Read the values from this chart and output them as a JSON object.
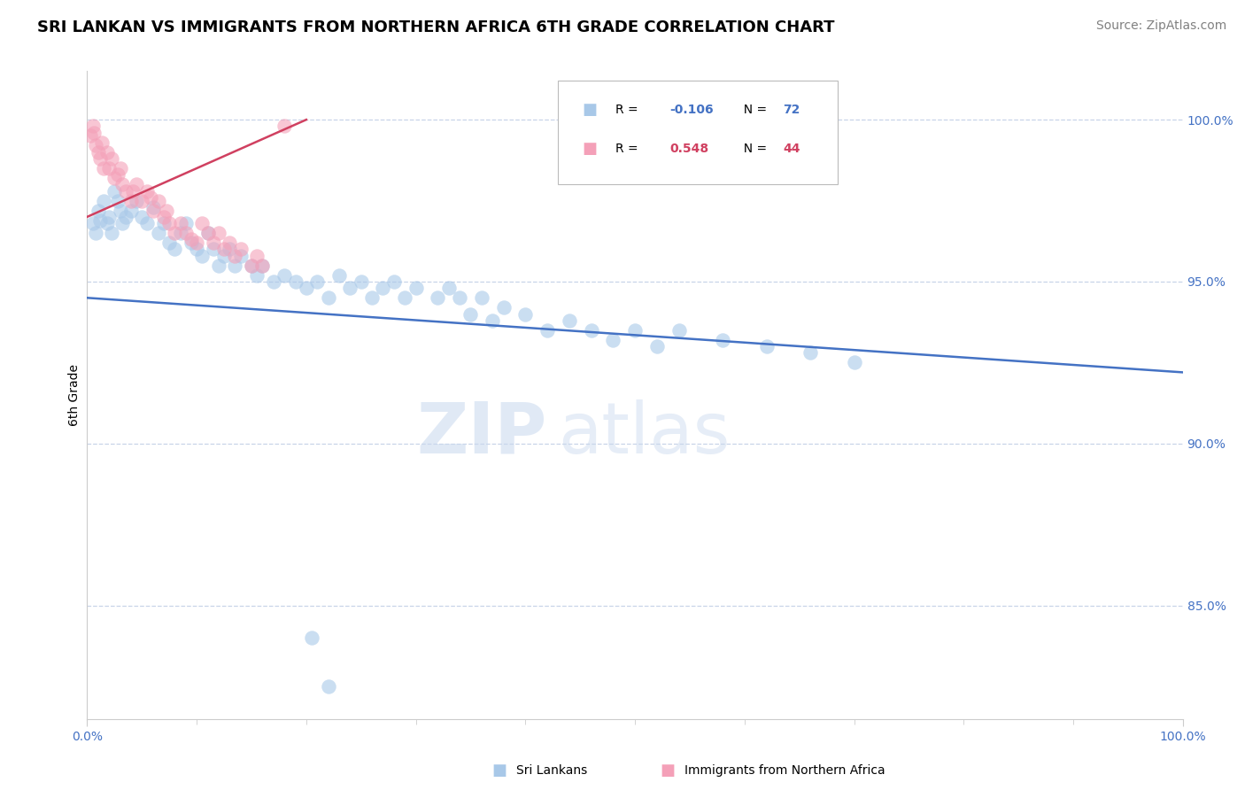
{
  "title": "SRI LANKAN VS IMMIGRANTS FROM NORTHERN AFRICA 6TH GRADE CORRELATION CHART",
  "source": "Source: ZipAtlas.com",
  "ylabel": "6th Grade",
  "legend_blue_r_val": "-0.106",
  "legend_blue_n_val": "72",
  "legend_pink_r_val": "0.548",
  "legend_pink_n_val": "44",
  "legend_label_blue": "Sri Lankans",
  "legend_label_pink": "Immigrants from Northern Africa",
  "blue_color": "#A8C8E8",
  "pink_color": "#F4A0B8",
  "trend_blue_color": "#4472C4",
  "trend_pink_color": "#D04060",
  "watermark_zip": "ZIP",
  "watermark_atlas": "atlas",
  "blue_points": [
    [
      0.5,
      96.8
    ],
    [
      0.8,
      96.5
    ],
    [
      1.0,
      97.2
    ],
    [
      1.2,
      96.9
    ],
    [
      1.5,
      97.5
    ],
    [
      1.8,
      96.8
    ],
    [
      2.0,
      97.0
    ],
    [
      2.2,
      96.5
    ],
    [
      2.5,
      97.8
    ],
    [
      2.8,
      97.5
    ],
    [
      3.0,
      97.2
    ],
    [
      3.2,
      96.8
    ],
    [
      3.5,
      97.0
    ],
    [
      4.0,
      97.2
    ],
    [
      4.5,
      97.5
    ],
    [
      5.0,
      97.0
    ],
    [
      5.5,
      96.8
    ],
    [
      6.0,
      97.3
    ],
    [
      6.5,
      96.5
    ],
    [
      7.0,
      96.8
    ],
    [
      7.5,
      96.2
    ],
    [
      8.0,
      96.0
    ],
    [
      8.5,
      96.5
    ],
    [
      9.0,
      96.8
    ],
    [
      9.5,
      96.2
    ],
    [
      10.0,
      96.0
    ],
    [
      10.5,
      95.8
    ],
    [
      11.0,
      96.5
    ],
    [
      11.5,
      96.0
    ],
    [
      12.0,
      95.5
    ],
    [
      12.5,
      95.8
    ],
    [
      13.0,
      96.0
    ],
    [
      13.5,
      95.5
    ],
    [
      14.0,
      95.8
    ],
    [
      15.0,
      95.5
    ],
    [
      15.5,
      95.2
    ],
    [
      16.0,
      95.5
    ],
    [
      17.0,
      95.0
    ],
    [
      18.0,
      95.2
    ],
    [
      19.0,
      95.0
    ],
    [
      20.0,
      94.8
    ],
    [
      21.0,
      95.0
    ],
    [
      22.0,
      94.5
    ],
    [
      23.0,
      95.2
    ],
    [
      24.0,
      94.8
    ],
    [
      25.0,
      95.0
    ],
    [
      26.0,
      94.5
    ],
    [
      27.0,
      94.8
    ],
    [
      28.0,
      95.0
    ],
    [
      29.0,
      94.5
    ],
    [
      30.0,
      94.8
    ],
    [
      32.0,
      94.5
    ],
    [
      33.0,
      94.8
    ],
    [
      34.0,
      94.5
    ],
    [
      35.0,
      94.0
    ],
    [
      36.0,
      94.5
    ],
    [
      37.0,
      93.8
    ],
    [
      38.0,
      94.2
    ],
    [
      40.0,
      94.0
    ],
    [
      42.0,
      93.5
    ],
    [
      44.0,
      93.8
    ],
    [
      46.0,
      93.5
    ],
    [
      48.0,
      93.2
    ],
    [
      50.0,
      93.5
    ],
    [
      52.0,
      93.0
    ],
    [
      54.0,
      93.5
    ],
    [
      58.0,
      93.2
    ],
    [
      62.0,
      93.0
    ],
    [
      66.0,
      92.8
    ],
    [
      70.0,
      92.5
    ],
    [
      20.5,
      84.0
    ],
    [
      22.0,
      82.5
    ]
  ],
  "pink_points": [
    [
      0.3,
      99.5
    ],
    [
      0.5,
      99.8
    ],
    [
      0.8,
      99.2
    ],
    [
      1.0,
      99.0
    ],
    [
      1.2,
      98.8
    ],
    [
      1.5,
      98.5
    ],
    [
      1.8,
      99.0
    ],
    [
      2.0,
      98.5
    ],
    [
      2.2,
      98.8
    ],
    [
      2.5,
      98.2
    ],
    [
      3.0,
      98.5
    ],
    [
      3.2,
      98.0
    ],
    [
      3.5,
      97.8
    ],
    [
      4.0,
      97.5
    ],
    [
      4.5,
      98.0
    ],
    [
      5.0,
      97.5
    ],
    [
      5.5,
      97.8
    ],
    [
      6.0,
      97.2
    ],
    [
      6.5,
      97.5
    ],
    [
      7.0,
      97.0
    ],
    [
      7.5,
      96.8
    ],
    [
      8.0,
      96.5
    ],
    [
      8.5,
      96.8
    ],
    [
      9.0,
      96.5
    ],
    [
      10.0,
      96.2
    ],
    [
      10.5,
      96.8
    ],
    [
      11.0,
      96.5
    ],
    [
      11.5,
      96.2
    ],
    [
      12.0,
      96.5
    ],
    [
      12.5,
      96.0
    ],
    [
      13.0,
      96.2
    ],
    [
      13.5,
      95.8
    ],
    [
      14.0,
      96.0
    ],
    [
      15.0,
      95.5
    ],
    [
      15.5,
      95.8
    ],
    [
      0.6,
      99.6
    ],
    [
      1.3,
      99.3
    ],
    [
      2.8,
      98.3
    ],
    [
      4.2,
      97.8
    ],
    [
      5.8,
      97.6
    ],
    [
      7.2,
      97.2
    ],
    [
      9.5,
      96.3
    ],
    [
      16.0,
      95.5
    ],
    [
      18.0,
      99.8
    ]
  ],
  "blue_trend_x": [
    0.0,
    100.0
  ],
  "blue_trend_y": [
    94.5,
    92.2
  ],
  "pink_trend_x": [
    0.0,
    20.0
  ],
  "pink_trend_y": [
    97.0,
    100.0
  ],
  "xmin": 0.0,
  "xmax": 100.0,
  "ymin": 81.5,
  "ymax": 101.5,
  "ytick_positions": [
    85.0,
    90.0,
    95.0,
    100.0
  ],
  "ytick_labels": [
    "85.0%",
    "90.0%",
    "95.0%",
    "100.0%"
  ],
  "grid_color": "#C8D4E8",
  "background_color": "#FFFFFF",
  "title_fontsize": 13,
  "source_fontsize": 10,
  "axis_color": "#4472C4"
}
